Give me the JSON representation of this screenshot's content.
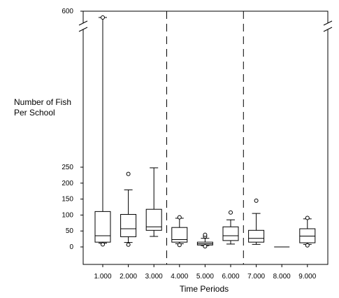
{
  "chart_data": {
    "type": "box",
    "xlabel": "Time Periods",
    "ylabel_lines": [
      "Number of Fish",
      "Per School"
    ],
    "categories": [
      "1.000",
      "2.000",
      "3.000",
      "4.000",
      "5.000",
      "6.000",
      "7.000",
      "8.000",
      "9.000"
    ],
    "y_ticks": [
      0,
      50,
      100,
      150,
      200,
      250,
      600
    ],
    "y_tick_labels": [
      "0",
      "50",
      "100",
      "150",
      "200",
      "250",
      "600"
    ],
    "ylim": [
      -20,
      600
    ],
    "axis_break_between": [
      270,
      590
    ],
    "period_dividers_after": [
      "3.000",
      "6.000"
    ],
    "boxes": [
      {
        "category": "1.000",
        "whisker_low": 12,
        "q1": 15,
        "median": 35,
        "q3": 111,
        "whisker_high": 590,
        "outliers": [
          8,
          590
        ]
      },
      {
        "category": "2.000",
        "whisker_low": 14,
        "q1": 32,
        "median": 57,
        "q3": 102,
        "whisker_high": 179,
        "outliers": [
          7,
          229
        ]
      },
      {
        "category": "3.000",
        "whisker_low": 33,
        "q1": 52,
        "median": 63,
        "q3": 118,
        "whisker_high": 248,
        "outliers": []
      },
      {
        "category": "4.000",
        "whisker_low": 10,
        "q1": 15,
        "median": 23,
        "q3": 61,
        "whisker_high": 90,
        "outliers": [
          6,
          93
        ]
      },
      {
        "category": "5.000",
        "whisker_low": 4,
        "q1": 6,
        "median": 10,
        "q3": 15,
        "whisker_high": 27,
        "outliers": [
          2,
          33,
          38
        ]
      },
      {
        "category": "6.000",
        "whisker_low": 9,
        "q1": 20,
        "median": 35,
        "q3": 63,
        "whisker_high": 85,
        "outliers": [
          108
        ]
      },
      {
        "category": "7.000",
        "whisker_low": 8,
        "q1": 15,
        "median": 27,
        "q3": 52,
        "whisker_high": 105,
        "outliers": [
          145
        ]
      },
      {
        "category": "8.000",
        "whisker_low": 0,
        "q1": 0,
        "median": 0,
        "q3": 0,
        "whisker_high": 0,
        "outliers": []
      },
      {
        "category": "9.000",
        "whisker_low": 8,
        "q1": 13,
        "median": 34,
        "q3": 57,
        "whisker_high": 88,
        "outliers": [
          5,
          91
        ]
      }
    ],
    "grid": false,
    "legend": "none"
  }
}
